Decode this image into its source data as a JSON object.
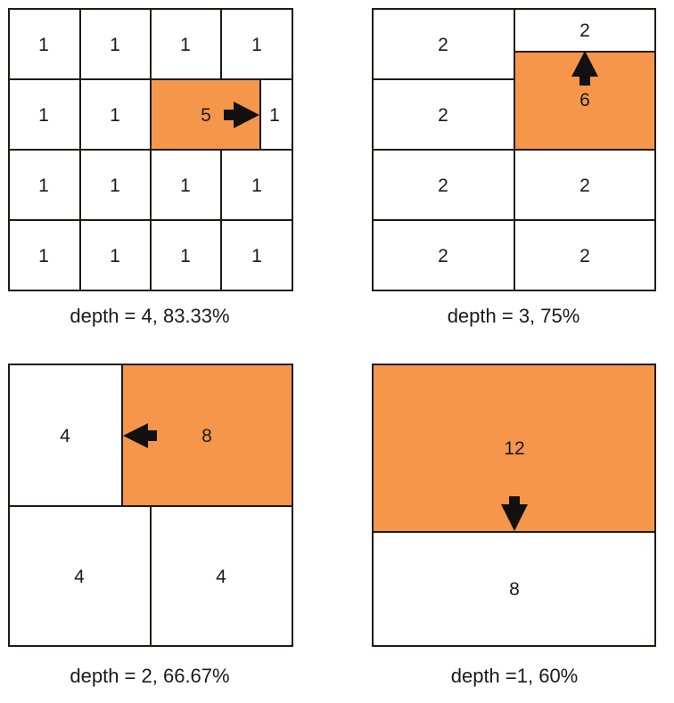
{
  "highlight_color": "#f5964a",
  "panels": [
    {
      "caption": "depth = 4, 83.33%",
      "cells": [
        {
          "value": "1",
          "highlighted": false
        },
        {
          "value": "1",
          "highlighted": false
        },
        {
          "value": "1",
          "highlighted": false
        },
        {
          "value": "1",
          "highlighted": false
        },
        {
          "value": "1",
          "highlighted": false
        },
        {
          "value": "1",
          "highlighted": false
        },
        {
          "value": "5",
          "highlighted": true
        },
        {
          "value": "1",
          "highlighted": false
        },
        {
          "value": "1",
          "highlighted": false
        },
        {
          "value": "1",
          "highlighted": false
        },
        {
          "value": "1",
          "highlighted": false
        },
        {
          "value": "1",
          "highlighted": false
        },
        {
          "value": "1",
          "highlighted": false
        },
        {
          "value": "1",
          "highlighted": false
        },
        {
          "value": "1",
          "highlighted": false
        },
        {
          "value": "1",
          "highlighted": false
        }
      ],
      "arrow": "right"
    },
    {
      "caption": "depth = 3, 75%",
      "cells": [
        {
          "value": "2",
          "highlighted": false
        },
        {
          "value": "2",
          "highlighted": false
        },
        {
          "value": "2",
          "highlighted": false
        },
        {
          "value": "6",
          "highlighted": true
        },
        {
          "value": "2",
          "highlighted": false
        },
        {
          "value": "2",
          "highlighted": false
        },
        {
          "value": "2",
          "highlighted": false
        },
        {
          "value": "2",
          "highlighted": false
        }
      ],
      "arrow": "up"
    },
    {
      "caption": "depth = 2, 66.67%",
      "cells": [
        {
          "value": "4",
          "highlighted": false
        },
        {
          "value": "8",
          "highlighted": true
        },
        {
          "value": "4",
          "highlighted": false
        },
        {
          "value": "4",
          "highlighted": false
        }
      ],
      "arrow": "left"
    },
    {
      "caption": "depth =1, 60%",
      "cells": [
        {
          "value": "12",
          "highlighted": true
        },
        {
          "value": "8",
          "highlighted": false
        }
      ],
      "arrow": "down"
    }
  ]
}
